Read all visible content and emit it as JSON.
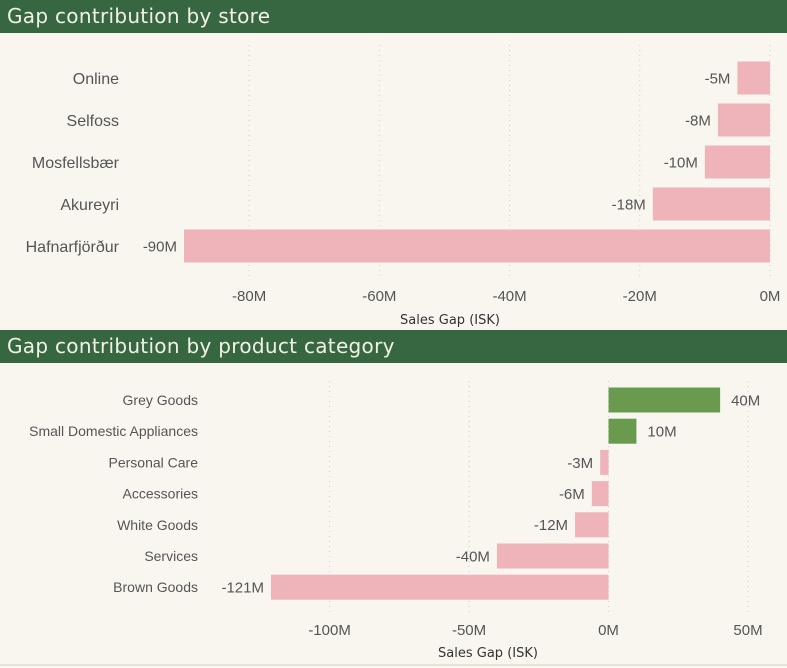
{
  "panels": [
    {
      "title": "Gap contribution by store"
    },
    {
      "title": "Gap contribution by product category"
    }
  ],
  "colors": {
    "negative": "#efb3ba",
    "positive": "#6a9a4d",
    "header": "#376741",
    "background": "#f8f6ef",
    "grid": "#cfcfcf"
  },
  "chart_data": [
    {
      "type": "bar",
      "orientation": "horizontal",
      "title": "Gap contribution by store",
      "xlabel": "Sales Gap (ISK)",
      "ylabel": "",
      "categories": [
        "Online",
        "Selfoss",
        "Mosfellsbær",
        "Akureyri",
        "Hafnarfjörður"
      ],
      "values": [
        -5,
        -8,
        -10,
        -18,
        -90
      ],
      "data_labels": [
        "-5M",
        "-8M",
        "-10M",
        "-18M",
        "-90M"
      ],
      "unit": "M",
      "xlim": [
        -90,
        0
      ],
      "xticks": [
        -80,
        -60,
        -40,
        -20,
        0
      ],
      "xtick_labels": [
        "-80M",
        "-60M",
        "-40M",
        "-20M",
        "0M"
      ],
      "grid": "vertical dotted"
    },
    {
      "type": "bar",
      "orientation": "horizontal",
      "title": "Gap contribution by product category",
      "xlabel": "Sales Gap (ISK)",
      "ylabel": "",
      "categories": [
        "Grey Goods",
        "Small Domestic Appliances",
        "Personal Care",
        "Accessories",
        "White Goods",
        "Services",
        "Brown Goods"
      ],
      "values": [
        40,
        10,
        -3,
        -6,
        -12,
        -40,
        -121
      ],
      "data_labels": [
        "40M",
        "10M",
        "-3M",
        "-6M",
        "-12M",
        "-40M",
        "-121M"
      ],
      "unit": "M",
      "xlim": [
        -121,
        50
      ],
      "xticks": [
        -100,
        -50,
        0,
        50
      ],
      "xtick_labels": [
        "-100M",
        "-50M",
        "0M",
        "50M"
      ],
      "grid": "vertical dotted"
    }
  ]
}
